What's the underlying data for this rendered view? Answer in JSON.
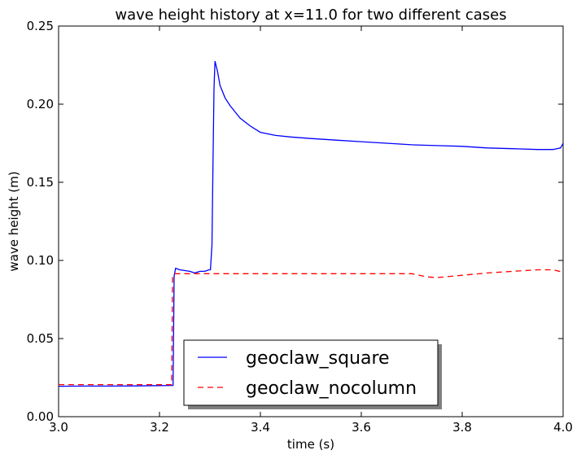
{
  "chart_data": {
    "type": "line",
    "title": "wave height history at x=11.0 for two different cases",
    "xlabel": "time (s)",
    "ylabel": "wave height (m)",
    "xlim": [
      3.0,
      4.0
    ],
    "ylim": [
      0.0,
      0.25
    ],
    "xticks": [
      "3.0",
      "3.2",
      "3.4",
      "3.6",
      "3.8",
      "4.0"
    ],
    "yticks": [
      "0.00",
      "0.05",
      "0.10",
      "0.15",
      "0.20",
      "0.25"
    ],
    "grid": false,
    "legend_position": "lower-left",
    "series": [
      {
        "name": "geoclaw_square",
        "color": "#0000ff",
        "style": "solid",
        "x": [
          3.0,
          3.05,
          3.1,
          3.15,
          3.2,
          3.227,
          3.229,
          3.232,
          3.24,
          3.26,
          3.27,
          3.28,
          3.29,
          3.298,
          3.301,
          3.304,
          3.306,
          3.308,
          3.31,
          3.315,
          3.32,
          3.33,
          3.34,
          3.35,
          3.36,
          3.38,
          3.4,
          3.43,
          3.46,
          3.5,
          3.55,
          3.6,
          3.65,
          3.7,
          3.75,
          3.8,
          3.85,
          3.9,
          3.95,
          3.98,
          3.995,
          4.0
        ],
        "y": [
          0.0195,
          0.0196,
          0.0196,
          0.0197,
          0.0199,
          0.02,
          0.09,
          0.095,
          0.094,
          0.093,
          0.092,
          0.093,
          0.093,
          0.094,
          0.094,
          0.11,
          0.16,
          0.21,
          0.2275,
          0.221,
          0.212,
          0.204,
          0.199,
          0.195,
          0.191,
          0.186,
          0.182,
          0.18,
          0.179,
          0.178,
          0.177,
          0.176,
          0.175,
          0.174,
          0.1735,
          0.173,
          0.172,
          0.1715,
          0.171,
          0.171,
          0.172,
          0.175
        ]
      },
      {
        "name": "geoclaw_nocolumn",
        "color": "#ff0000",
        "style": "dashed",
        "x": [
          3.0,
          3.05,
          3.1,
          3.15,
          3.2,
          3.224,
          3.226,
          3.23,
          3.3,
          3.4,
          3.5,
          3.6,
          3.7,
          3.73,
          3.75,
          3.8,
          3.85,
          3.9,
          3.95,
          3.98,
          4.0
        ],
        "y": [
          0.0205,
          0.0205,
          0.0205,
          0.0205,
          0.0205,
          0.0205,
          0.09,
          0.0915,
          0.0915,
          0.0915,
          0.0915,
          0.0915,
          0.0915,
          0.0895,
          0.089,
          0.0905,
          0.092,
          0.093,
          0.094,
          0.094,
          0.0925
        ]
      }
    ]
  }
}
